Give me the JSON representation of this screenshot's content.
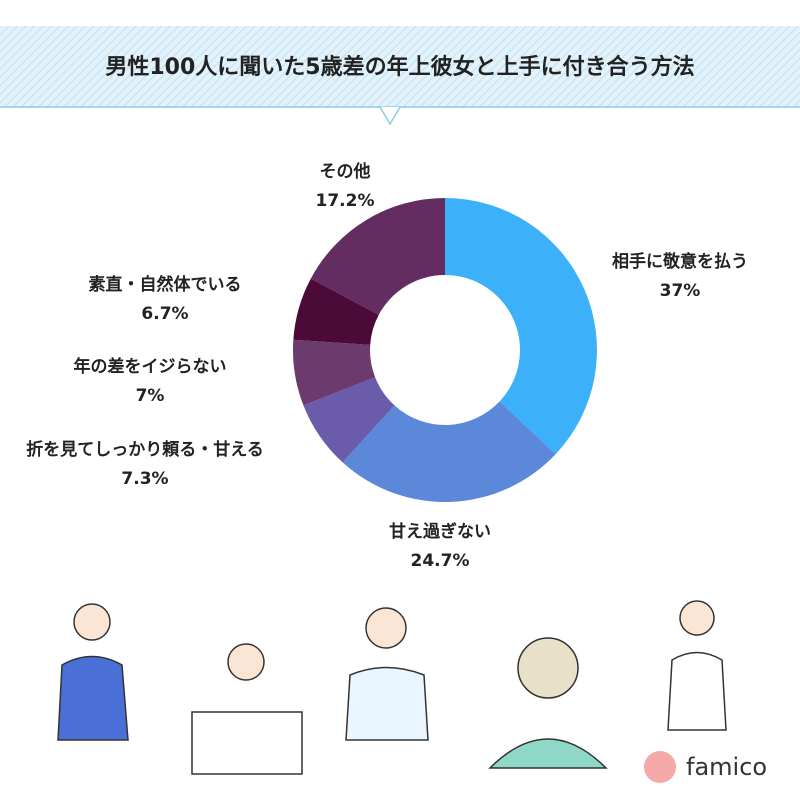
{
  "chart_data": {
    "type": "pie",
    "title": "男性100人に聞いた5歳差の年上彼女と上手に付き合う方法",
    "categories": [
      "相手に敬意を払う",
      "甘え過ぎない",
      "折を見てしっかり頼る・甘える",
      "年の差をイジらない",
      "素直・自然体でいる",
      "その他"
    ],
    "values": [
      37,
      24.7,
      7.3,
      7,
      6.7,
      17.2
    ],
    "value_labels": [
      "37%",
      "24.7%",
      "7.3%",
      "7%",
      "6.7%",
      "17.2%"
    ],
    "colors": [
      "#3cb0f8",
      "#5b88d8",
      "#6a5bab",
      "#6c3a6c",
      "#4b0a38",
      "#632d62"
    ]
  },
  "brand": "famico"
}
